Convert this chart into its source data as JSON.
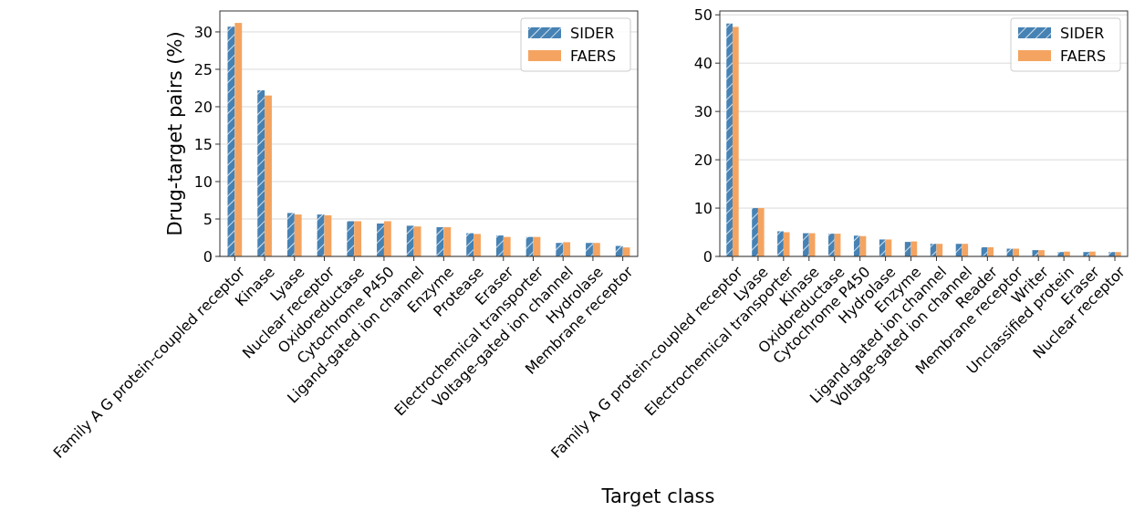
{
  "chart_data": [
    {
      "type": "bar",
      "ylabel": "Drug-target pairs (%)",
      "categories": [
        "Family A G protein-coupled receptor",
        "Kinase",
        "Lyase",
        "Nuclear receptor",
        "Oxidoreductase",
        "Cytochrome P450",
        "Ligand-gated ion channel",
        "Enzyme",
        "Protease",
        "Eraser",
        "Electrochemical transporter",
        "Voltage-gated ion channel",
        "Hydrolase",
        "Membrane receptor"
      ],
      "series": [
        {
          "name": "SIDER",
          "color": "#4682b4",
          "values": [
            30.7,
            22.2,
            5.8,
            5.6,
            4.7,
            4.4,
            4.1,
            3.9,
            3.1,
            2.8,
            2.6,
            1.8,
            1.8,
            1.4
          ]
        },
        {
          "name": "FAERS",
          "color": "#f4a460",
          "values": [
            31.2,
            21.5,
            5.6,
            5.5,
            4.7,
            4.7,
            4.0,
            3.9,
            3.0,
            2.6,
            2.6,
            1.9,
            1.8,
            1.2
          ]
        }
      ],
      "ylim": [
        0,
        32.8
      ],
      "yticks": [
        0,
        5,
        10,
        15,
        20,
        25,
        30
      ],
      "grid": "y",
      "legend": "top right"
    },
    {
      "type": "bar",
      "xlabel": "Target class",
      "categories": [
        "Family A G protein-coupled receptor",
        "Lyase",
        "Electrochemical transporter",
        "Kinase",
        "Oxidoreductase",
        "Cytochrome P450",
        "Hydrolase",
        "Enzyme",
        "Ligand-gated ion channel",
        "Voltage-gated ion channel",
        "Reader",
        "Membrane receptor",
        "Writer",
        "Unclassified protein",
        "Eraser",
        "Nuclear receptor"
      ],
      "series": [
        {
          "name": "SIDER",
          "color": "#4682b4",
          "values": [
            48.2,
            10.0,
            5.2,
            4.8,
            4.7,
            4.3,
            3.5,
            3.0,
            2.6,
            2.6,
            1.9,
            1.6,
            1.3,
            0.9,
            0.9,
            0.9
          ]
        },
        {
          "name": "FAERS",
          "color": "#f4a460",
          "values": [
            47.5,
            10.0,
            5.0,
            4.8,
            4.7,
            4.2,
            3.5,
            3.1,
            2.6,
            2.6,
            1.9,
            1.6,
            1.3,
            1.0,
            1.0,
            0.9
          ]
        }
      ],
      "ylim": [
        0,
        50.8
      ],
      "yticks": [
        0,
        10,
        20,
        30,
        40,
        50
      ],
      "grid": "y",
      "legend": "top right"
    }
  ]
}
